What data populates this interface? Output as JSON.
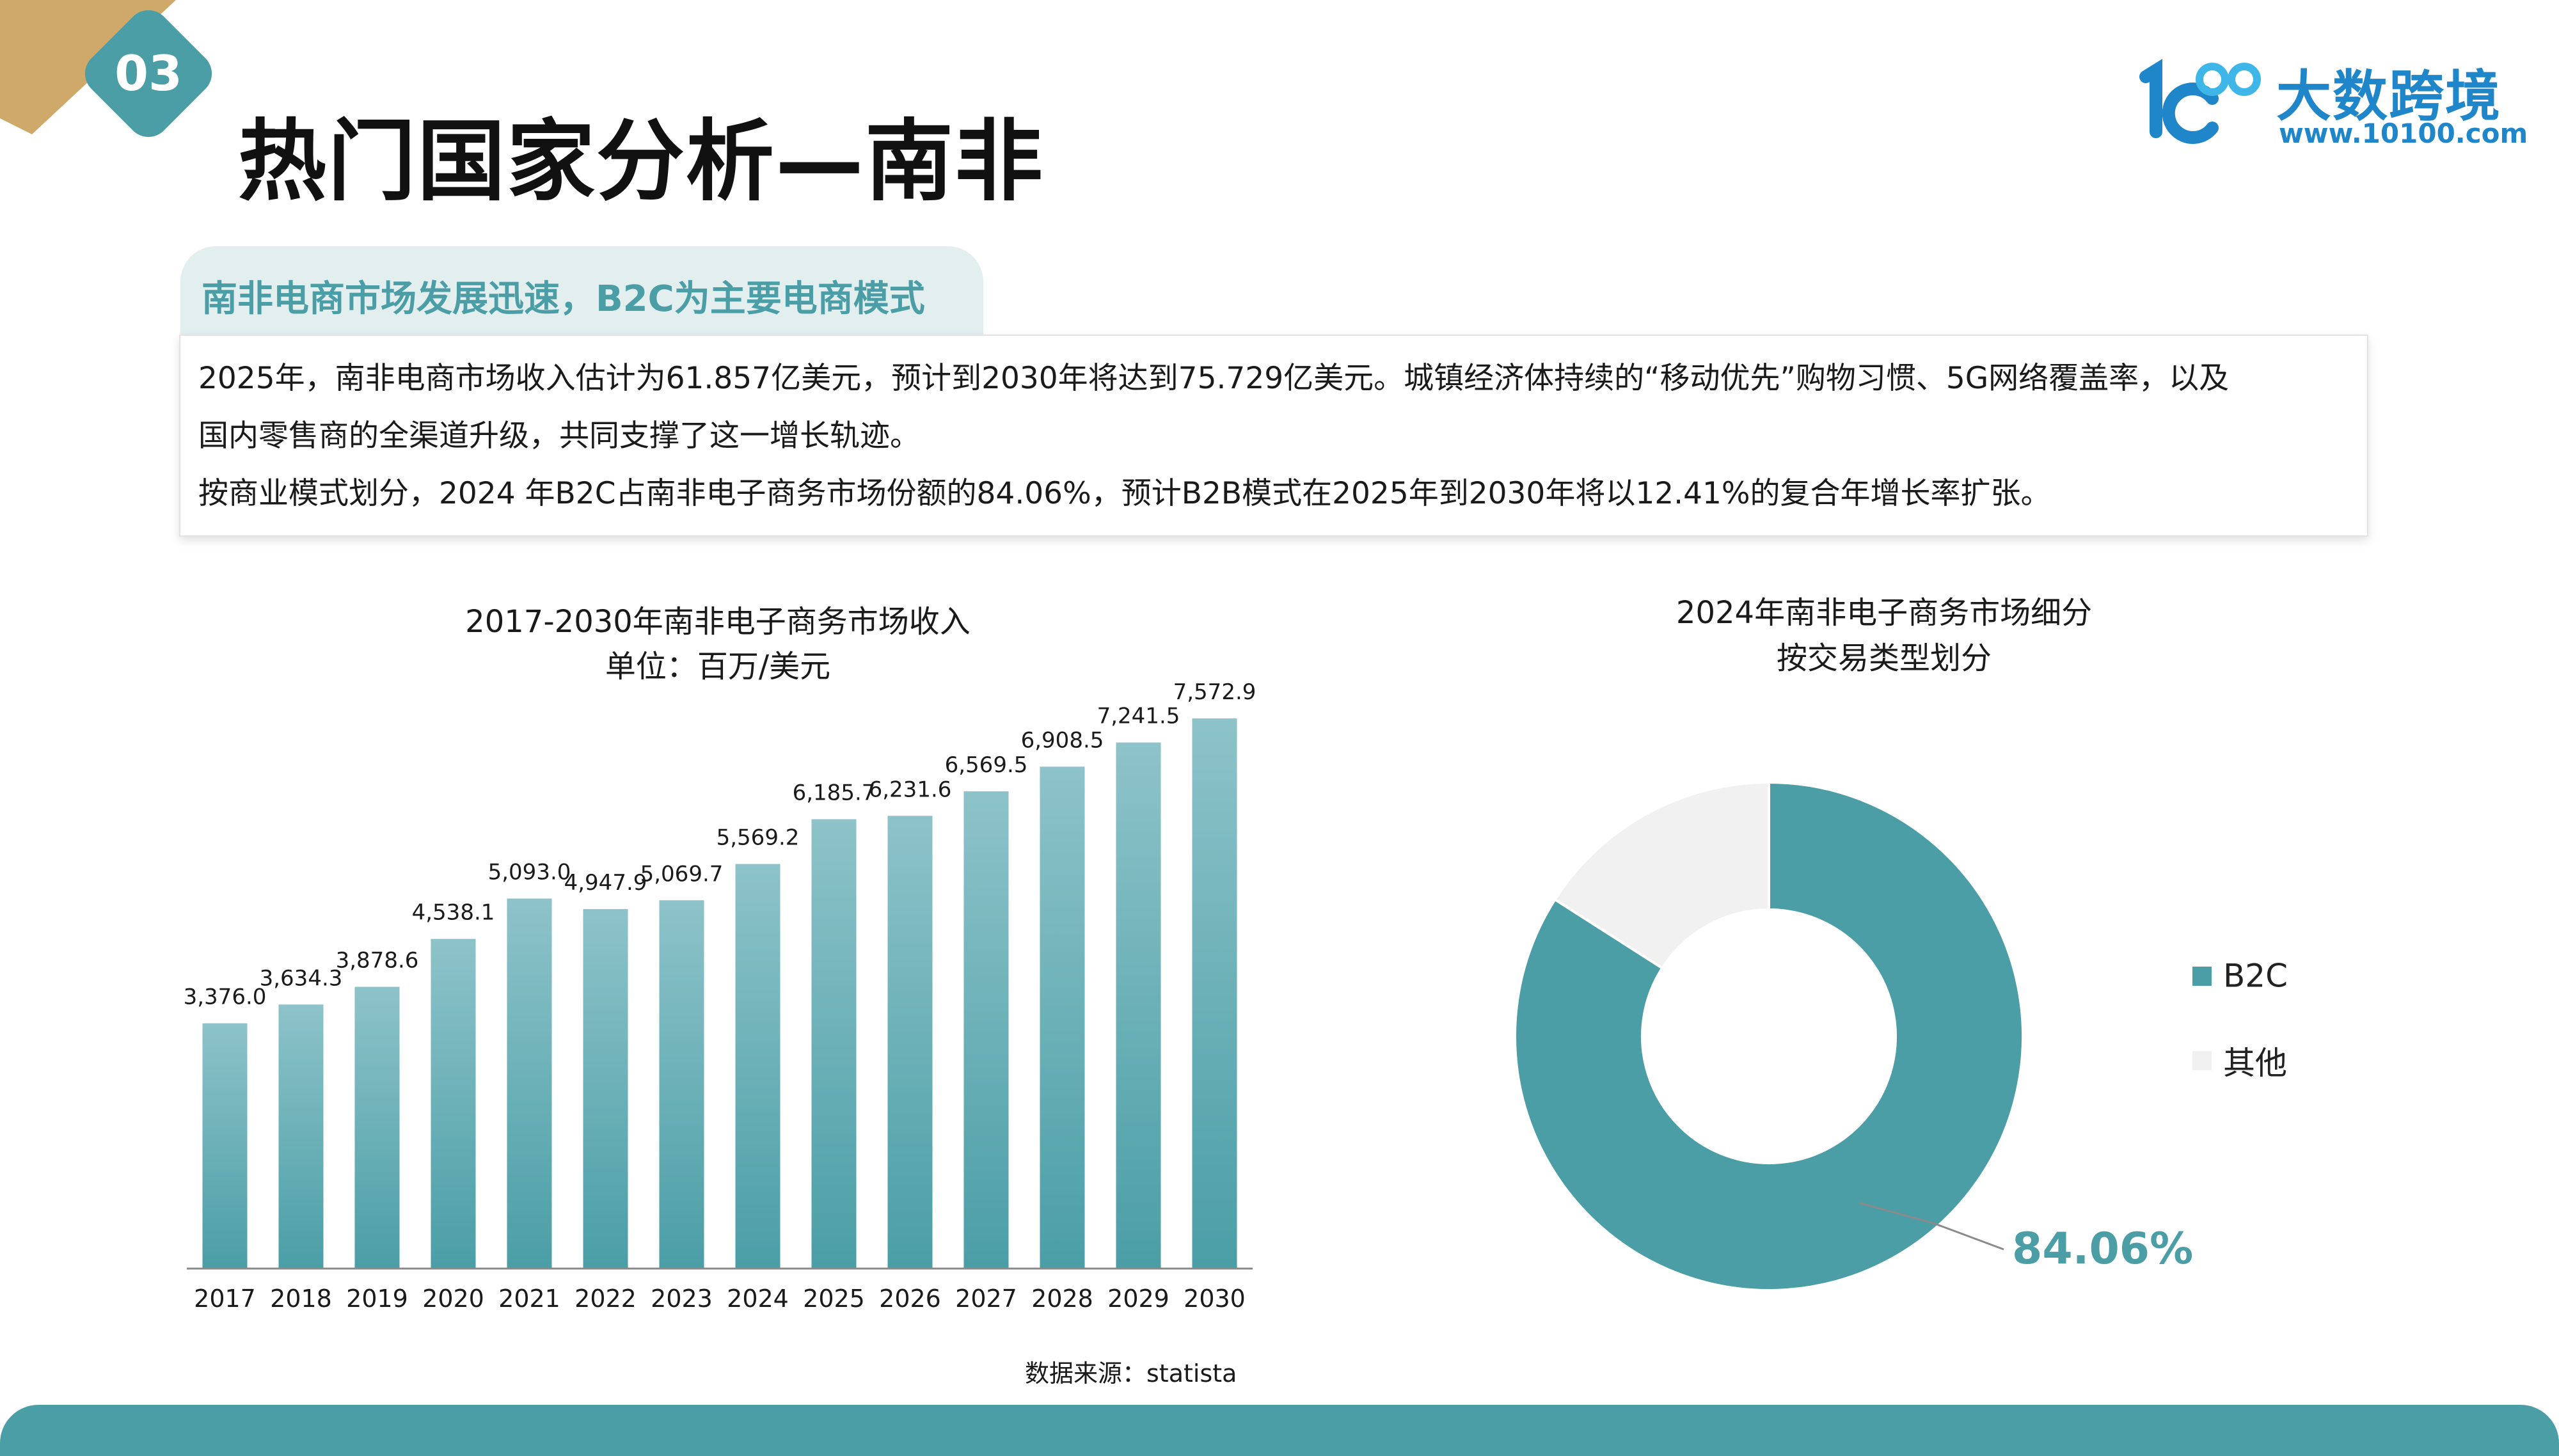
{
  "header": {
    "section_number": "03",
    "title": "热门国家分析—南非",
    "logo_name": "大数跨境",
    "logo_url": "www.10100.com",
    "logo_mark": "10100-logo-mark"
  },
  "summary": {
    "heading": "南非电商市场发展迅速，B2C为主要电商模式",
    "line1": "2025年，南非电商市场收入估计为61.857亿美元，预计到2030年将达到75.729亿美元。城镇经济体持续的“移动优先”购物习惯、5G网络覆盖率，以及",
    "line2": "国内零售商的全渠道升级，共同支撑了这一增长轨迹。",
    "line3": "按商业模式划分，2024 年B2C占南非电子商务市场份额的84.06%，预计B2B模式在2025年到2030年将以12.41%的复合年增长率扩张。"
  },
  "colors": {
    "accent": "#4b9ea6",
    "accent_light": "#e3eeef",
    "corner_gold": "#cfa96a",
    "logo_blue": "#1f86c9",
    "other_gray": "#f1f1f1"
  },
  "chart_data": [
    {
      "type": "bar",
      "title": "2017-2030年南非电子商务市场收入",
      "subtitle": "单位：百万/美元",
      "categories": [
        "2017",
        "2018",
        "2019",
        "2020",
        "2021",
        "2022",
        "2023",
        "2024",
        "2025",
        "2026",
        "2027",
        "2028",
        "2029",
        "2030"
      ],
      "values": [
        3376.0,
        3634.3,
        3878.6,
        4538.1,
        5093.0,
        4947.9,
        5069.7,
        5569.2,
        6185.7,
        6231.6,
        6569.5,
        6908.5,
        7241.5,
        7572.9
      ],
      "labels": [
        "3,376.0",
        "3,634.3",
        "3,878.6",
        "4,538.1",
        "5,093.0",
        "4,947.9",
        "5,069.7",
        "5,569.2",
        "6,185.7",
        "6,231.6",
        "6,569.5",
        "6,908.5",
        "7,241.5",
        "7,572.9"
      ],
      "ylim": [
        0,
        7572.9
      ],
      "grid": false,
      "color": "#4b9ea6"
    },
    {
      "type": "pie",
      "style": "donut",
      "title": "2024年南非电子商务市场细分",
      "subtitle": "按交易类型划分",
      "slices": [
        {
          "name": "B2C",
          "value": 84.06,
          "color": "#4b9ea6"
        },
        {
          "name": "其他",
          "value": 15.94,
          "color": "#f1f1f1"
        }
      ],
      "data_label": "84.06%",
      "legend_position": "right"
    }
  ],
  "footer": {
    "source": "数据来源：statista"
  }
}
